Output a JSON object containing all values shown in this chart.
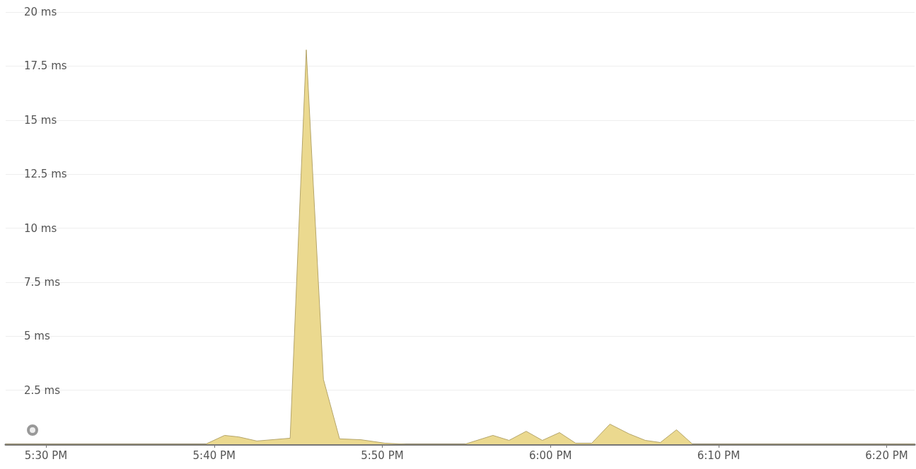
{
  "chart_data": {
    "type": "area",
    "x": [
      17.46,
      17.658,
      17.677,
      17.691,
      17.709,
      17.742,
      17.758,
      17.775,
      17.791,
      17.812,
      17.836,
      17.857,
      17.915,
      17.943,
      17.959,
      17.976,
      17.992,
      18.009,
      18.025,
      18.041,
      18.059,
      18.078,
      18.094,
      18.109,
      18.125,
      18.141,
      18.361
    ],
    "series": [
      {
        "color": "#ebd98f",
        "values": [
          0,
          0,
          0.41,
          0.34,
          0.15,
          0.28,
          18.25,
          3.0,
          0.25,
          0.21,
          0.05,
          0,
          0,
          0.41,
          0.18,
          0.6,
          0.18,
          0.54,
          0.05,
          0.05,
          0.93,
          0.48,
          0.18,
          0.08,
          0.67,
          0,
          0
        ]
      }
    ],
    "xlim": [
      17.46,
      18.361
    ],
    "xticks": [
      {
        "value": 17.5,
        "label": "5:30 PM"
      },
      {
        "value": 17.6667,
        "label": "5:40 PM"
      },
      {
        "value": 17.8333,
        "label": "5:50 PM"
      },
      {
        "value": 18,
        "label": "6:00 PM"
      },
      {
        "value": 18.1667,
        "label": "6:10 PM"
      },
      {
        "value": 18.3333,
        "label": "6:20 PM"
      }
    ],
    "ylim": [
      0,
      20
    ],
    "yticks": [
      {
        "value": 0,
        "label": null
      },
      {
        "value": 2.5,
        "label": "2.5 ms"
      },
      {
        "value": 5,
        "label": "5 ms"
      },
      {
        "value": 7.5,
        "label": "7.5 ms"
      },
      {
        "value": 10,
        "label": "10 ms"
      },
      {
        "value": 12.5,
        "label": "12.5 ms"
      },
      {
        "value": 15,
        "label": "15 ms"
      },
      {
        "value": 17.5,
        "label": "17.5 ms"
      },
      {
        "value": 20,
        "label": "20 ms"
      }
    ],
    "grid": "y",
    "marker": "none",
    "line_style": "solid"
  }
}
